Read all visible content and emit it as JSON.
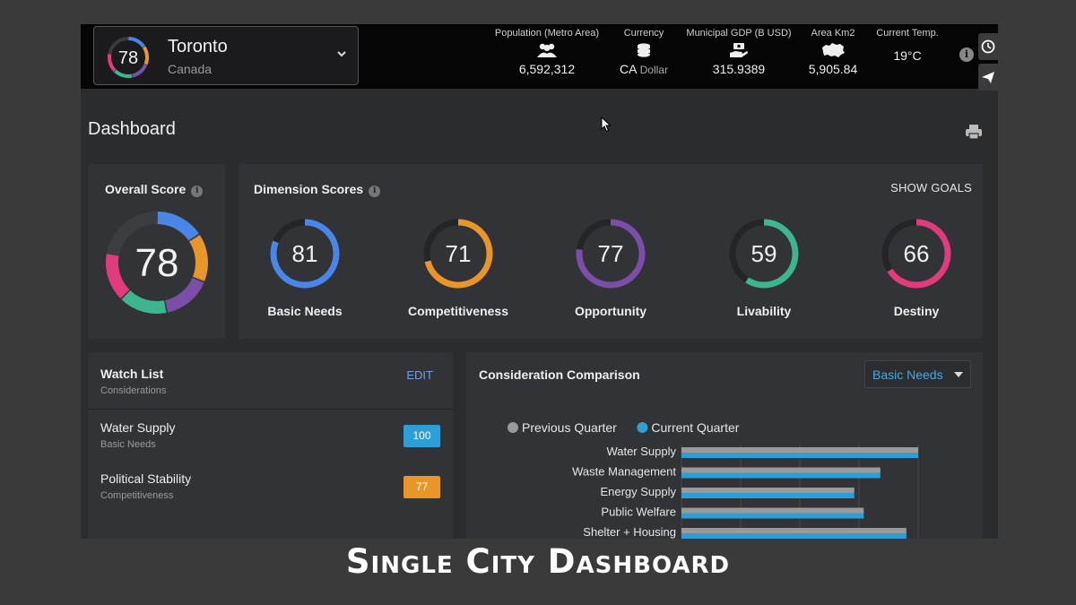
{
  "city": {
    "score": 78,
    "name": "Toronto",
    "country": "Canada"
  },
  "stats": [
    {
      "label": "Population (Metro Area)",
      "icon": "people-icon",
      "value": "6,592,312",
      "suffix": ""
    },
    {
      "label": "Currency",
      "icon": "coins-icon",
      "value": "CA",
      "suffix": "Dollar"
    },
    {
      "label": "Municipal GDP (B USD)",
      "icon": "money-hand-icon",
      "value": "315.9389",
      "suffix": ""
    },
    {
      "label": "Area Km2",
      "icon": "map-icon",
      "value": "5,905.84",
      "suffix": ""
    },
    {
      "label": "Current Temp.",
      "icon": "",
      "value": "19°C",
      "suffix": ""
    }
  ],
  "page": {
    "title": "Dashboard"
  },
  "overall": {
    "title": "Overall Score",
    "score": 78
  },
  "dimensions": {
    "title": "Dimension Scores",
    "show_goals": "SHOW GOALS",
    "items": [
      {
        "label": "Basic Needs",
        "score": 81,
        "color": "#4a86e8"
      },
      {
        "label": "Competitiveness",
        "score": 71,
        "color": "#e8962a"
      },
      {
        "label": "Opportunity",
        "score": 77,
        "color": "#7b4ea8"
      },
      {
        "label": "Livability",
        "score": 59,
        "color": "#3db58f"
      },
      {
        "label": "Destiny",
        "score": 66,
        "color": "#e23b7d"
      }
    ]
  },
  "watchlist": {
    "title": "Watch List",
    "subtitle": "Considerations",
    "edit": "EDIT",
    "items": [
      {
        "name": "Water Supply",
        "category": "Basic Needs",
        "value": "100",
        "color": "#2e9fd6"
      },
      {
        "name": "Political Stability",
        "category": "Competitiveness",
        "value": "77",
        "color": "#e8962a"
      }
    ]
  },
  "comparison": {
    "title": "Consideration Comparison",
    "selected": "Basic Needs"
  },
  "chart_data": {
    "type": "bar",
    "orientation": "horizontal",
    "legend_position": "top",
    "categories": [
      "Water Supply",
      "Waste Management",
      "Energy Supply",
      "Public Welfare",
      "Shelter + Housing"
    ],
    "series": [
      {
        "name": "Previous Quarter",
        "color": "#9a9a9a",
        "values": [
          100,
          84,
          73,
          77,
          95
        ]
      },
      {
        "name": "Current Quarter",
        "color": "#2e9fd6",
        "values": [
          100,
          84,
          73,
          77,
          95
        ]
      }
    ],
    "xlim": [
      0,
      100
    ],
    "grid": true
  },
  "caption": "Single City Dashboard"
}
